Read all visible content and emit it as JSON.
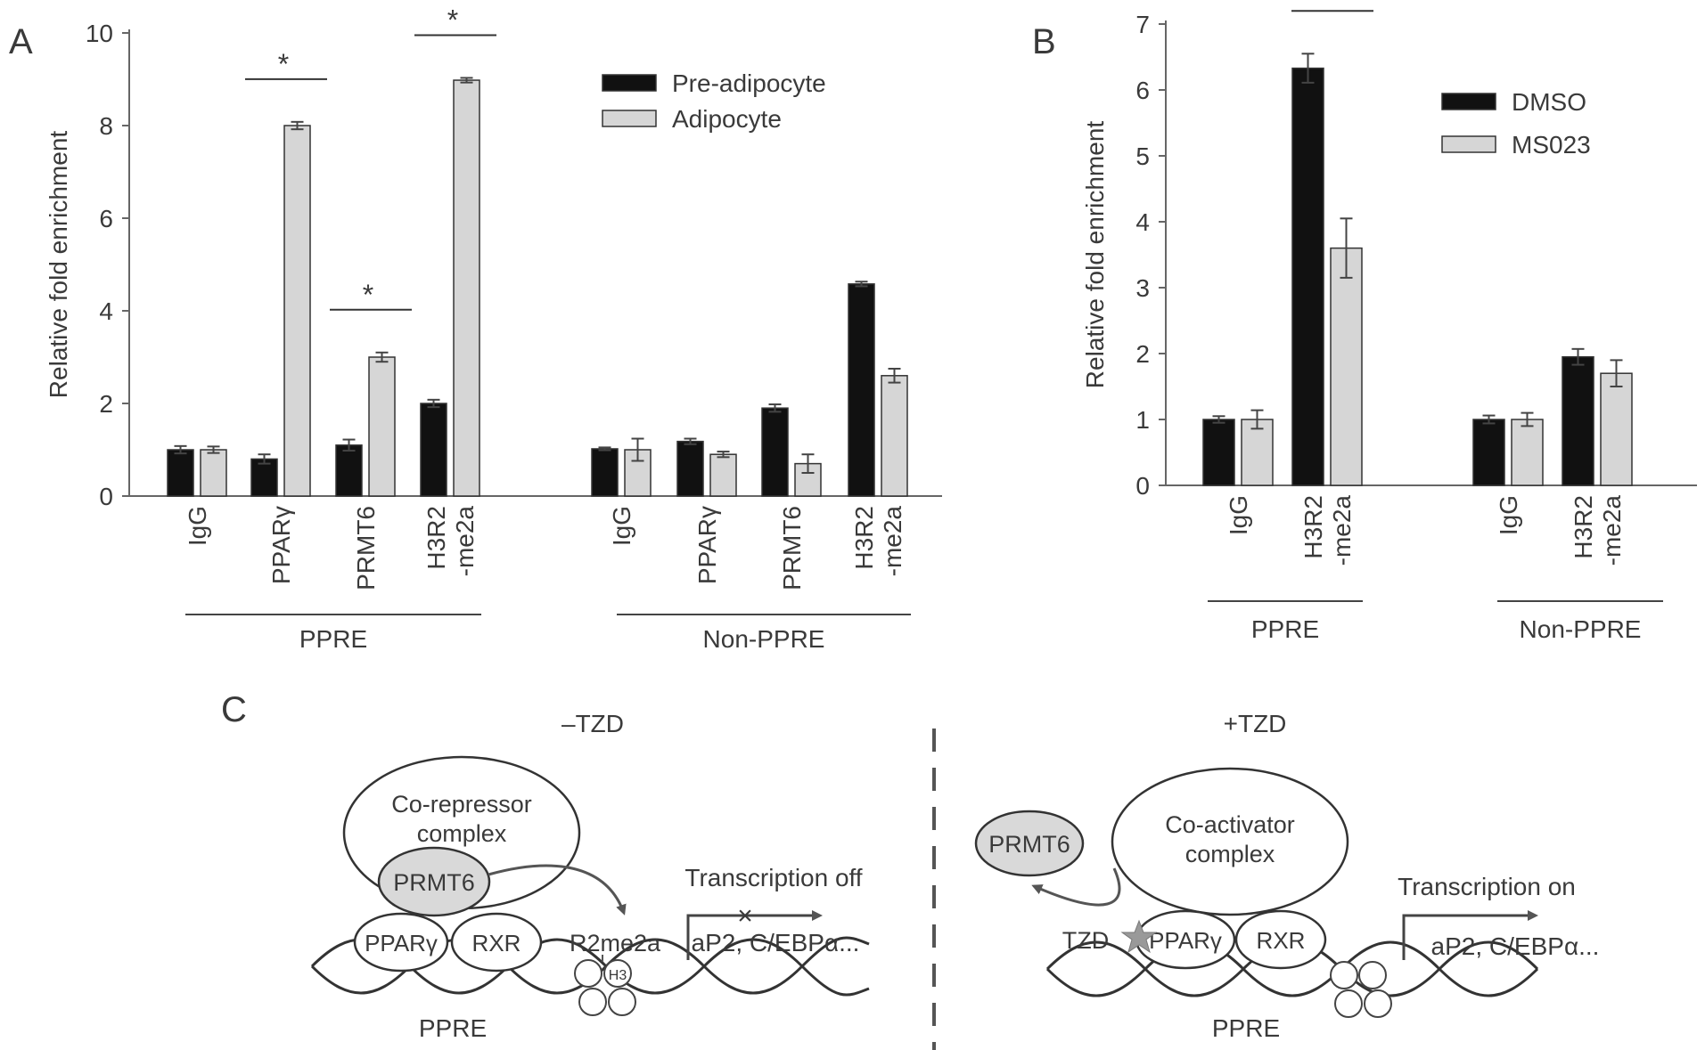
{
  "panel_labels": {
    "a": "A",
    "b": "B",
    "c": "C"
  },
  "colors": {
    "black_bar": "#111111",
    "gray_bar": "#d6d6d6",
    "axis": "#666666",
    "text": "#3a3a3a",
    "prmt6_fill": "#d9d9d9",
    "star_fill": "#999999"
  },
  "chart_data": [
    {
      "type": "bar",
      "panel": "A",
      "ylabel": "Relative fold enrichment",
      "ylim": [
        0,
        10
      ],
      "yticks": [
        0,
        2,
        4,
        6,
        8,
        10
      ],
      "grid": false,
      "legend_position": "top-right",
      "groups": [
        {
          "label": "PPRE",
          "categories": [
            [
              "IgG"
            ],
            [
              "PPARγ"
            ],
            [
              "PRMT6"
            ],
            [
              "H3R2",
              "-me2a"
            ]
          ]
        },
        {
          "label": "Non-PPRE",
          "categories": [
            [
              "IgG"
            ],
            [
              "PPARγ"
            ],
            [
              "PRMT6"
            ],
            [
              "H3R2",
              "-me2a"
            ]
          ]
        }
      ],
      "series": [
        {
          "name": "Pre-adipocyte",
          "color": "#111111",
          "values": [
            1.0,
            0.8,
            1.1,
            2.0,
            1.02,
            1.18,
            1.9,
            4.58
          ],
          "errors": [
            0.08,
            0.1,
            0.12,
            0.08,
            0.03,
            0.06,
            0.08,
            0.05
          ]
        },
        {
          "name": "Adipocyte",
          "color": "#d6d6d6",
          "values": [
            1.0,
            8.0,
            3.0,
            8.98,
            1.0,
            0.9,
            0.7,
            2.6
          ],
          "errors": [
            0.07,
            0.08,
            0.1,
            0.05,
            0.24,
            0.06,
            0.2,
            0.15
          ]
        }
      ],
      "significance": [
        {
          "category_index": 1,
          "label": "*"
        },
        {
          "category_index": 2,
          "label": "*"
        },
        {
          "category_index": 3,
          "label": "*"
        }
      ]
    },
    {
      "type": "bar",
      "panel": "B",
      "ylabel": "Relative fold enrichment",
      "ylim": [
        0,
        7
      ],
      "yticks": [
        0,
        1,
        2,
        3,
        4,
        5,
        6,
        7
      ],
      "grid": false,
      "legend_position": "top-right",
      "groups": [
        {
          "label": "PPRE",
          "categories": [
            [
              "IgG"
            ],
            [
              "H3R2",
              "-me2a"
            ]
          ]
        },
        {
          "label": "Non-PPRE",
          "categories": [
            [
              "IgG"
            ],
            [
              "H3R2",
              "-me2a"
            ]
          ]
        }
      ],
      "series": [
        {
          "name": "DMSO",
          "color": "#111111",
          "values": [
            1.0,
            6.33,
            1.0,
            1.95
          ],
          "errors": [
            0.05,
            0.22,
            0.06,
            0.12
          ]
        },
        {
          "name": "MS023",
          "color": "#d6d6d6",
          "values": [
            1.0,
            3.6,
            1.0,
            1.7
          ],
          "errors": [
            0.14,
            0.45,
            0.1,
            0.2
          ]
        }
      ],
      "significance": [
        {
          "category_index": 1,
          "label": "*"
        }
      ]
    }
  ],
  "diagram": {
    "left": {
      "title": "–TZD",
      "complex": [
        "Co-repressor",
        "complex"
      ],
      "prmt6": "PRMT6",
      "ppar": "PPARγ",
      "rxr": "RXR",
      "mark": "R2me2a",
      "histone": "H3",
      "transcription": "Transcription off",
      "genes": "aP2, C/EBPα...",
      "dna_label": "PPRE"
    },
    "right": {
      "title": "+TZD",
      "complex": [
        "Co-activator",
        "complex"
      ],
      "prmt6": "PRMT6",
      "tzd": "TZD",
      "ppar": "PPARγ",
      "rxr": "RXR",
      "transcription": "Transcription on",
      "genes": "aP2, C/EBPα...",
      "dna_label": "PPRE"
    }
  }
}
